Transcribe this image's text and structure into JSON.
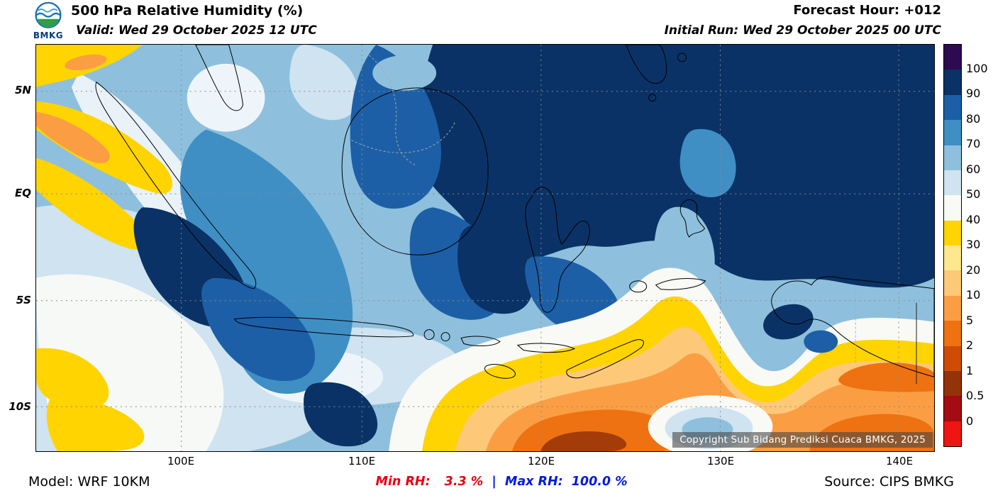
{
  "header": {
    "logo_text": "BMKG",
    "title": "500 hPa Relative Humidity (%)",
    "valid_line": "Valid: Wed 29 October 2025 12 UTC",
    "forecast_hour": "Forecast Hour: +012",
    "initial_run": "Initial Run: Wed 29 October 2025 00 UTC"
  },
  "map": {
    "lat_labels": [
      "5N",
      "EQ",
      "5S",
      "10S"
    ],
    "lon_labels": [
      "100E",
      "110E",
      "120E",
      "130E",
      "140E"
    ],
    "copyright": "Copyright Sub Bidang Prediksi Cuaca BMKG, 2025"
  },
  "colorbar": {
    "unit": "%",
    "labels": [
      "100",
      "90",
      "80",
      "70",
      "60",
      "50",
      "40",
      "30",
      "20",
      "10",
      "5",
      "2",
      "1",
      "0.5",
      "0"
    ],
    "colors": [
      "#2e0a50",
      "#0a3266",
      "#1d5fa6",
      "#3f8fc5",
      "#8ec0dd",
      "#cfe3f0",
      "#f9f9f5",
      "#ffd400",
      "#fee78f",
      "#fdc878",
      "#fb9e43",
      "#ee7211",
      "#cf4c06",
      "#93330a",
      "#a50b12",
      "#ef1512"
    ]
  },
  "footer": {
    "model": "Model: WRF 10KM",
    "min_label": "Min RH:",
    "min_value": "3.3 %",
    "separator": "|",
    "max_label": "Max RH:",
    "max_value": "100.0 %",
    "source": "Source: CIPS BMKG"
  },
  "status_colors": {
    "min_rh": "#e60012",
    "max_rh": "#0018e6"
  }
}
